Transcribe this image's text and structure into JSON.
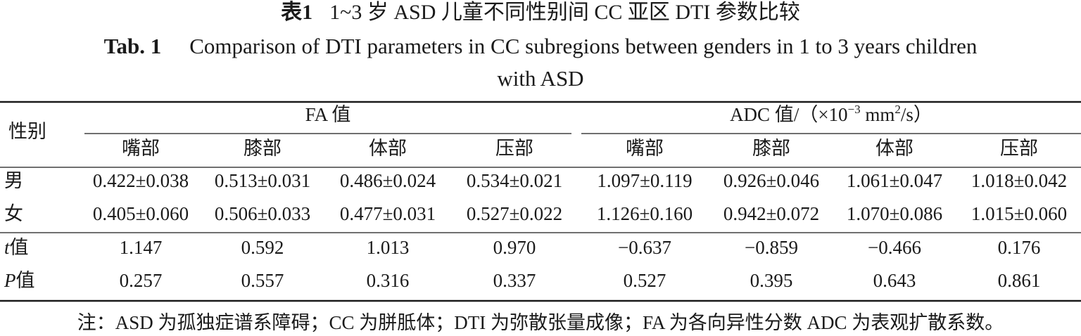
{
  "title_cn": {
    "label": "表1",
    "text": "1~3 岁 ASD 儿童不同性别间 CC 亚区 DTI 参数比较"
  },
  "title_en": {
    "label": "Tab. 1",
    "text_lines": [
      "Comparison of DTI parameters in CC subregions between genders in 1 to 3 years children",
      "with ASD"
    ]
  },
  "table": {
    "row_header": "性别",
    "groups": [
      {
        "parts": [
          "FA 值"
        ]
      },
      {
        "parts": [
          "ADC 值/（×10",
          "−3",
          " mm",
          "2",
          "/s）"
        ]
      }
    ],
    "subheaders": [
      "嘴部",
      "膝部",
      "体部",
      "压部",
      "嘴部",
      "膝部",
      "体部",
      "压部"
    ],
    "rows": [
      {
        "label": [
          "男"
        ],
        "cells": [
          "0.422±0.038",
          "0.513±0.031",
          "0.486±0.024",
          "0.534±0.021",
          "1.097±0.119",
          "0.926±0.046",
          "1.061±0.047",
          "1.018±0.042"
        ]
      },
      {
        "label": [
          "女"
        ],
        "cells": [
          "0.405±0.060",
          "0.506±0.033",
          "0.477±0.031",
          "0.527±0.022",
          "1.126±0.160",
          "0.942±0.072",
          "1.070±0.086",
          "1.015±0.060"
        ]
      },
      {
        "label": [
          "t",
          "值"
        ],
        "cells": [
          "1.147",
          "0.592",
          "1.013",
          "0.970",
          "−0.637",
          "−0.859",
          "−0.466",
          "0.176"
        ]
      },
      {
        "label": [
          "P",
          "值"
        ],
        "cells": [
          "0.257",
          "0.557",
          "0.316",
          "0.337",
          "0.527",
          "0.395",
          "0.643",
          "0.861"
        ]
      }
    ]
  },
  "note": "注：ASD 为孤独症谱系障碍；CC 为胼胝体；DTI 为弥散张量成像；FA 为各向异性分数 ADC 为表观扩散系数。"
}
